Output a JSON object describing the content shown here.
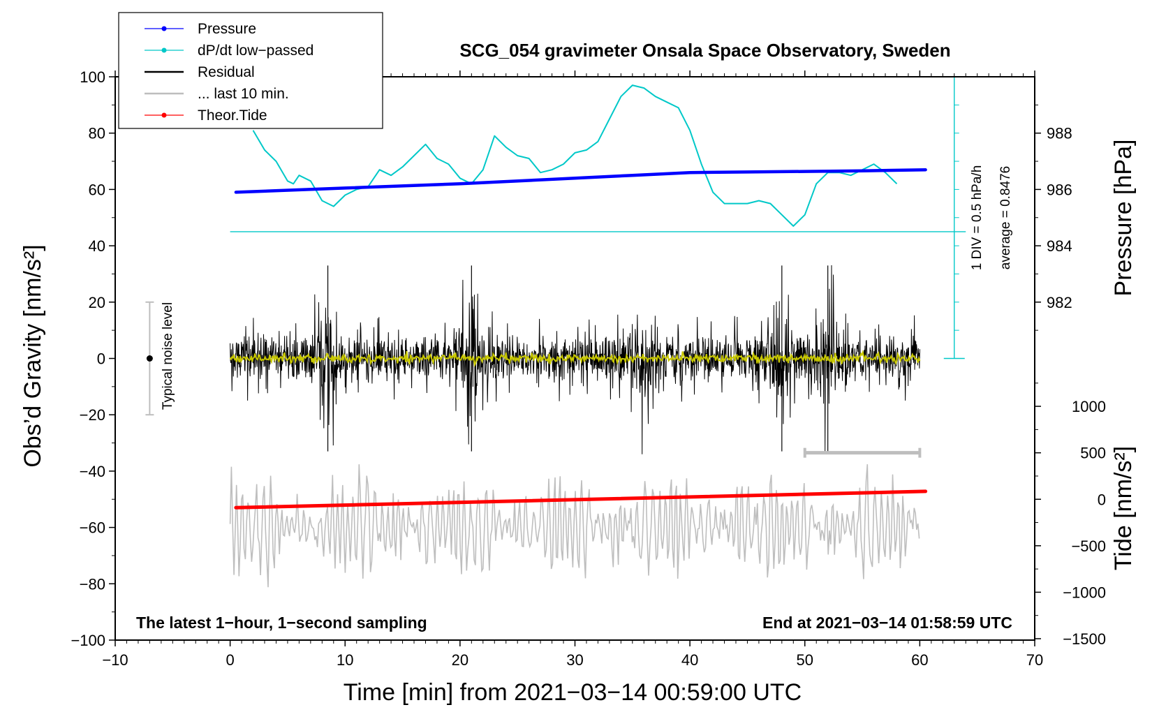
{
  "chart_data": {
    "type": "line",
    "title": "SCG_054 gravimeter Onsala Space Observatory, Sweden",
    "xlabel": "Time [min] from 2021−03−14 00:59:00 UTC",
    "ylabel_left": "Obs’d Gravity [nm/s²]",
    "ylabel_right_top": "Pressure [hPa]",
    "ylabel_right_bottom": "Tide [nm/s²]",
    "xlim": [
      -10,
      70
    ],
    "ylim": [
      -100,
      100
    ],
    "x_ticks": [
      "−10",
      "0",
      "10",
      "20",
      "30",
      "40",
      "50",
      "60",
      "70"
    ],
    "y_ticks": [
      "−100",
      "−80",
      "−60",
      "−40",
      "−20",
      "0",
      "20",
      "40",
      "60",
      "80",
      "100"
    ],
    "pressure_axis": {
      "ticks": [
        "988",
        "986",
        "984",
        "982"
      ],
      "values": [
        988,
        986,
        984,
        982
      ]
    },
    "tide_axis": {
      "ticks": [
        "1000",
        "500",
        "0",
        "−500",
        "−1000",
        "−1500"
      ],
      "values": [
        1000,
        500,
        0,
        -500,
        -1000,
        -1500
      ]
    },
    "legend": [
      {
        "label": "Pressure",
        "color": "#0000ff",
        "marker": "dot"
      },
      {
        "label": "dP/dt low−passed",
        "color": "#00c8c8",
        "marker": "dot"
      },
      {
        "label": "Residual",
        "color": "#000000",
        "marker": "line"
      },
      {
        "label": "... last 10 min.",
        "color": "#bebebe",
        "marker": "line"
      },
      {
        "label": "Theor.Tide",
        "color": "#ff0000",
        "marker": "dot"
      }
    ],
    "series": [
      {
        "name": "Pressure",
        "unit": "hPa",
        "color": "#0000ff",
        "x": [
          0.5,
          10,
          20,
          30,
          35,
          40,
          45,
          50,
          55,
          60.5
        ],
        "y": [
          985.9,
          986.05,
          986.2,
          986.4,
          986.5,
          986.6,
          986.62,
          986.64,
          986.66,
          986.7
        ]
      },
      {
        "name": "dP/dt low−passed",
        "unit": "hPa/h",
        "color": "#00c8c8",
        "baseline": 0,
        "units_per_div": 0.5,
        "average": 0.8476,
        "x": [
          2,
          3,
          4,
          5,
          5.5,
          6,
          7,
          8,
          9,
          10,
          11,
          12,
          13,
          14,
          15,
          16,
          17,
          18,
          19,
          20,
          21,
          22,
          23,
          24,
          25,
          26,
          27,
          28,
          29,
          30,
          31,
          32,
          33,
          34,
          35,
          36,
          37,
          38,
          39,
          40,
          41,
          42,
          43,
          44,
          45,
          46,
          47,
          48,
          49,
          50,
          51,
          52,
          53,
          54,
          55,
          56,
          57,
          58
        ],
        "y": [
          1.8,
          1.45,
          1.25,
          0.9,
          0.85,
          1.0,
          0.9,
          0.55,
          0.45,
          0.65,
          0.75,
          0.8,
          1.1,
          1.0,
          1.15,
          1.35,
          1.55,
          1.3,
          1.2,
          0.95,
          0.85,
          1.1,
          1.7,
          1.5,
          1.35,
          1.3,
          1.05,
          1.1,
          1.2,
          1.4,
          1.45,
          1.6,
          2.0,
          2.4,
          2.6,
          2.55,
          2.4,
          2.3,
          2.2,
          1.8,
          1.2,
          0.7,
          0.5,
          0.5,
          0.5,
          0.55,
          0.5,
          0.3,
          0.1,
          0.3,
          0.85,
          1.05,
          1.05,
          1.0,
          1.1,
          1.2,
          1.05,
          0.85
        ]
      },
      {
        "name": "Residual",
        "unit": "nm/s²",
        "color": "#000000",
        "x_range": [
          0,
          60
        ],
        "y_approx_range": [
          -34,
          34
        ],
        "x_burst_minutes": [
          8.5,
          21,
          36,
          48,
          52
        ],
        "x_big_spikes": [
          8.5,
          21,
          48,
          52
        ]
      },
      {
        "name": "... last 10 min.",
        "unit": "nm/s²",
        "color": "#bebebe",
        "x_range": [
          50,
          60
        ],
        "y": -33.5
      },
      {
        "name": "Residual smoothed",
        "unit": "nm/s²",
        "color": "#c8c800",
        "x_range": [
          0,
          60
        ],
        "y_approx": 0
      },
      {
        "name": "Residual (scaled, gray trace)",
        "unit": "nm/s²",
        "color": "#bebebe",
        "x_range": [
          0,
          60
        ],
        "y_approx_range": [
          -92,
          -33
        ],
        "center": -60
      },
      {
        "name": "Theor.Tide",
        "unit": "nm/s²",
        "color": "#ff0000",
        "x": [
          0.5,
          60.5
        ],
        "y": [
          -90,
          85
        ]
      }
    ],
    "noise_level": {
      "label": "Typical noise level",
      "x": -7,
      "y_range": [
        -20,
        20
      ],
      "center": 0
    },
    "annotations": {
      "bottom_left": "The latest 1−hour, 1−second sampling",
      "bottom_right": "End at 2021−03−14 01:58:59 UTC",
      "div_label": "1 DIV = 0.5 hPa/h",
      "average_label": "average = 0.8476"
    },
    "colors": {
      "pressure": "#0000ff",
      "dpdt": "#00c8c8",
      "residual": "#000000",
      "last10": "#bebebe",
      "tide": "#ff0000",
      "smooth": "#c8c800",
      "gray_trace": "#bebebe"
    }
  }
}
